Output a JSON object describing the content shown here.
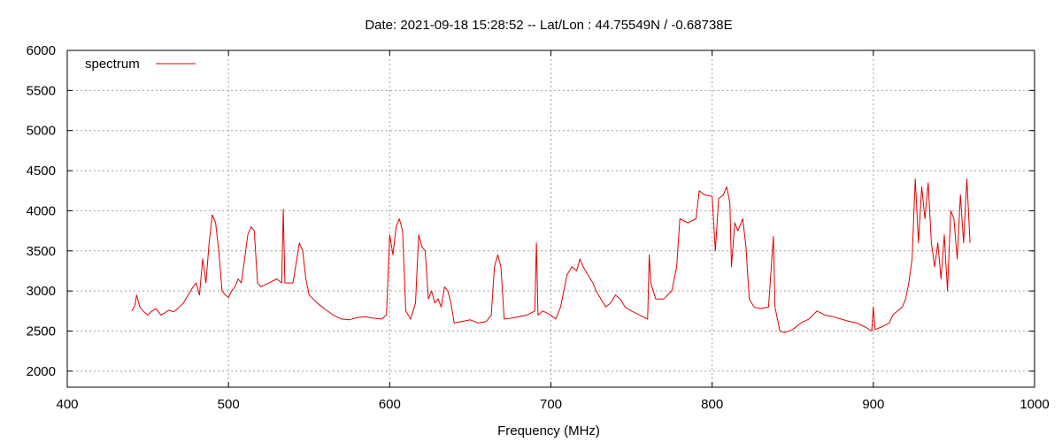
{
  "chart_data": {
    "type": "line",
    "title": "Date: 2021-09-18 15:28:52  --  Lat/Lon : 44.75549N / -0.68738E",
    "xlabel": "Frequency (MHz)",
    "ylabel": "",
    "xlim": [
      400,
      1000
    ],
    "ylim": [
      1800,
      6000
    ],
    "x_ticks": [
      400,
      500,
      600,
      700,
      800,
      900,
      1000
    ],
    "y_ticks": [
      2000,
      2500,
      3000,
      3500,
      4000,
      4500,
      5000,
      5500,
      6000
    ],
    "grid": true,
    "legend_position": "top-left",
    "colors": {
      "series": "#e00000",
      "grid": "#a0a0a0"
    },
    "series": [
      {
        "name": "spectrum",
        "points": [
          [
            440,
            2750
          ],
          [
            442,
            2820
          ],
          [
            443,
            2950
          ],
          [
            445,
            2800
          ],
          [
            448,
            2730
          ],
          [
            450,
            2700
          ],
          [
            452,
            2740
          ],
          [
            455,
            2780
          ],
          [
            458,
            2700
          ],
          [
            460,
            2720
          ],
          [
            463,
            2760
          ],
          [
            466,
            2740
          ],
          [
            469,
            2790
          ],
          [
            472,
            2850
          ],
          [
            475,
            2950
          ],
          [
            478,
            3050
          ],
          [
            480,
            3100
          ],
          [
            482,
            2950
          ],
          [
            484,
            3400
          ],
          [
            486,
            3100
          ],
          [
            488,
            3600
          ],
          [
            490,
            3950
          ],
          [
            492,
            3850
          ],
          [
            494,
            3500
          ],
          [
            496,
            3000
          ],
          [
            498,
            2950
          ],
          [
            500,
            2920
          ],
          [
            502,
            3000
          ],
          [
            504,
            3050
          ],
          [
            506,
            3150
          ],
          [
            508,
            3100
          ],
          [
            510,
            3400
          ],
          [
            512,
            3700
          ],
          [
            514,
            3800
          ],
          [
            516,
            3750
          ],
          [
            518,
            3100
          ],
          [
            520,
            3050
          ],
          [
            525,
            3100
          ],
          [
            530,
            3150
          ],
          [
            533,
            3100
          ],
          [
            534,
            4020
          ],
          [
            535,
            3100
          ],
          [
            540,
            3100
          ],
          [
            542,
            3350
          ],
          [
            544,
            3600
          ],
          [
            546,
            3500
          ],
          [
            548,
            3150
          ],
          [
            550,
            2950
          ],
          [
            555,
            2850
          ],
          [
            560,
            2770
          ],
          [
            565,
            2700
          ],
          [
            570,
            2650
          ],
          [
            575,
            2640
          ],
          [
            580,
            2670
          ],
          [
            585,
            2680
          ],
          [
            590,
            2660
          ],
          [
            595,
            2650
          ],
          [
            598,
            2700
          ],
          [
            600,
            3700
          ],
          [
            602,
            3450
          ],
          [
            604,
            3800
          ],
          [
            606,
            3900
          ],
          [
            608,
            3750
          ],
          [
            610,
            2750
          ],
          [
            613,
            2650
          ],
          [
            616,
            2850
          ],
          [
            618,
            3700
          ],
          [
            620,
            3550
          ],
          [
            622,
            3500
          ],
          [
            624,
            2900
          ],
          [
            626,
            3000
          ],
          [
            628,
            2850
          ],
          [
            630,
            2900
          ],
          [
            632,
            2800
          ],
          [
            634,
            3050
          ],
          [
            636,
            3000
          ],
          [
            638,
            2850
          ],
          [
            640,
            2600
          ],
          [
            645,
            2620
          ],
          [
            650,
            2640
          ],
          [
            655,
            2600
          ],
          [
            660,
            2620
          ],
          [
            663,
            2700
          ],
          [
            665,
            3300
          ],
          [
            667,
            3450
          ],
          [
            669,
            3300
          ],
          [
            671,
            2650
          ],
          [
            675,
            2660
          ],
          [
            680,
            2680
          ],
          [
            685,
            2700
          ],
          [
            690,
            2750
          ],
          [
            691,
            3600
          ],
          [
            692,
            2700
          ],
          [
            695,
            2750
          ],
          [
            700,
            2700
          ],
          [
            703,
            2650
          ],
          [
            706,
            2800
          ],
          [
            708,
            3000
          ],
          [
            710,
            3200
          ],
          [
            713,
            3300
          ],
          [
            716,
            3250
          ],
          [
            718,
            3400
          ],
          [
            720,
            3300
          ],
          [
            723,
            3200
          ],
          [
            726,
            3100
          ],
          [
            728,
            3000
          ],
          [
            731,
            2900
          ],
          [
            734,
            2800
          ],
          [
            737,
            2850
          ],
          [
            740,
            2950
          ],
          [
            743,
            2900
          ],
          [
            746,
            2800
          ],
          [
            750,
            2750
          ],
          [
            755,
            2700
          ],
          [
            760,
            2650
          ],
          [
            761,
            3450
          ],
          [
            762,
            3100
          ],
          [
            765,
            2900
          ],
          [
            770,
            2900
          ],
          [
            775,
            3000
          ],
          [
            778,
            3300
          ],
          [
            780,
            3900
          ],
          [
            785,
            3850
          ],
          [
            790,
            3900
          ],
          [
            792,
            4250
          ],
          [
            795,
            4200
          ],
          [
            800,
            4180
          ],
          [
            802,
            3500
          ],
          [
            804,
            4150
          ],
          [
            807,
            4200
          ],
          [
            809,
            4300
          ],
          [
            811,
            4100
          ],
          [
            812,
            3300
          ],
          [
            814,
            3850
          ],
          [
            816,
            3750
          ],
          [
            819,
            3900
          ],
          [
            821,
            3550
          ],
          [
            823,
            2900
          ],
          [
            826,
            2800
          ],
          [
            830,
            2780
          ],
          [
            835,
            2800
          ],
          [
            838,
            3680
          ],
          [
            839,
            2800
          ],
          [
            842,
            2500
          ],
          [
            845,
            2480
          ],
          [
            850,
            2520
          ],
          [
            855,
            2600
          ],
          [
            860,
            2650
          ],
          [
            865,
            2750
          ],
          [
            870,
            2700
          ],
          [
            875,
            2680
          ],
          [
            880,
            2650
          ],
          [
            885,
            2620
          ],
          [
            890,
            2600
          ],
          [
            895,
            2550
          ],
          [
            899,
            2500
          ],
          [
            900,
            2800
          ],
          [
            901,
            2520
          ],
          [
            905,
            2550
          ],
          [
            910,
            2600
          ],
          [
            912,
            2700
          ],
          [
            915,
            2750
          ],
          [
            918,
            2800
          ],
          [
            920,
            2900
          ],
          [
            922,
            3100
          ],
          [
            924,
            3400
          ],
          [
            926,
            4400
          ],
          [
            928,
            3600
          ],
          [
            930,
            4300
          ],
          [
            932,
            3900
          ],
          [
            934,
            4350
          ],
          [
            936,
            3600
          ],
          [
            938,
            3300
          ],
          [
            940,
            3600
          ],
          [
            942,
            3150
          ],
          [
            944,
            3700
          ],
          [
            946,
            3000
          ],
          [
            948,
            4000
          ],
          [
            950,
            3900
          ],
          [
            952,
            3400
          ],
          [
            954,
            4200
          ],
          [
            956,
            3600
          ],
          [
            958,
            4400
          ],
          [
            960,
            3600
          ]
        ]
      }
    ]
  }
}
